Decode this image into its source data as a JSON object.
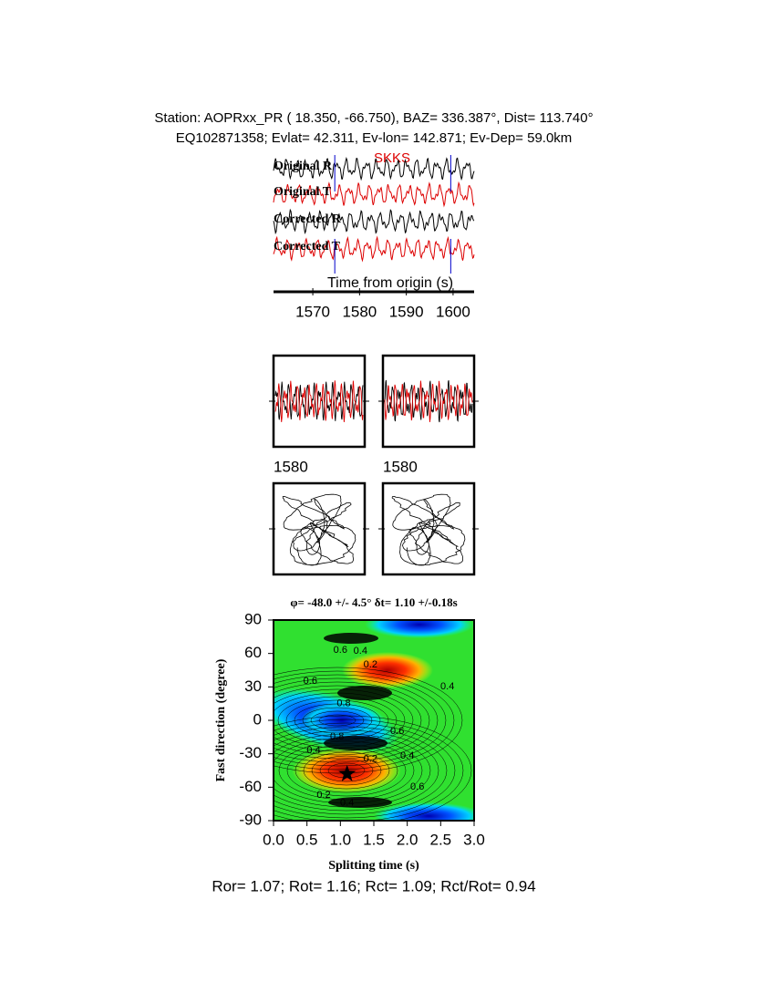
{
  "header": {
    "station_line": "Station: AOPRxx_PR (  18.350,  -66.750), BAZ=  336.387°, Dist=  113.740°",
    "event_line": "EQ102871358; Evlat=  42.311, Ev-lon= 142.871; Ev-Dep= 59.0km"
  },
  "traces": {
    "labels": [
      "Original R",
      "Original T",
      "Corrected R",
      "Corrected T"
    ],
    "phase": "SKKS",
    "xlabel": "Time from origin (s)",
    "xlim": [
      1561.6,
      1604.5
    ],
    "xticks": [
      1570,
      1580,
      1590,
      1600
    ],
    "window": [
      1574.7,
      1599.5
    ]
  },
  "particle_panels": {
    "tick_labels": [
      "1580",
      "1580"
    ]
  },
  "chart_data": {
    "type": "contour",
    "title": "φ= -48.0 +/- 4.5° δt= 1.10 +/-0.18s",
    "xlabel": "Splitting time (s)",
    "ylabel": "Fast direction (degree)",
    "xlim": [
      0,
      3
    ],
    "ylim": [
      -90,
      90
    ],
    "xticks": [
      {
        "value": 0,
        "label": "0.0"
      },
      {
        "value": 0.5,
        "label": "0.5"
      },
      {
        "value": 1,
        "label": "1.0"
      },
      {
        "value": 1.5,
        "label": "1.5"
      },
      {
        "value": 2,
        "label": "2.0"
      },
      {
        "value": 2.5,
        "label": "2.5"
      },
      {
        "value": 3,
        "label": "3.0"
      }
    ],
    "yticks": [
      90,
      60,
      30,
      0,
      -30,
      -60,
      -90
    ],
    "best": {
      "dt": 1.1,
      "phi": -48
    },
    "contour_labels": [
      {
        "dt": 1.0,
        "phi": 63,
        "value": 0.6
      },
      {
        "dt": 1.3,
        "phi": 62,
        "value": 0.4
      },
      {
        "dt": 1.45,
        "phi": 50,
        "value": 0.2
      },
      {
        "dt": 0.55,
        "phi": 35,
        "value": 0.6
      },
      {
        "dt": 1.05,
        "phi": 15,
        "value": 0.8
      },
      {
        "dt": 2.6,
        "phi": 30,
        "value": 0.4
      },
      {
        "dt": 1.85,
        "phi": -10,
        "value": 0.6
      },
      {
        "dt": 0.95,
        "phi": -15,
        "value": 0.8
      },
      {
        "dt": 0.6,
        "phi": -27,
        "value": 0.4
      },
      {
        "dt": 1.45,
        "phi": -35,
        "value": 0.2
      },
      {
        "dt": 2.0,
        "phi": -32,
        "value": 0.4
      },
      {
        "dt": 0.75,
        "phi": -67,
        "value": 0.2
      },
      {
        "dt": 1.1,
        "phi": -74,
        "value": 0.4
      },
      {
        "dt": 2.15,
        "phi": -60,
        "value": 0.6
      }
    ]
  },
  "footer": "Ror= 1.07; Rot= 1.16; Rct= 1.09; Rct/Rot= 0.94"
}
